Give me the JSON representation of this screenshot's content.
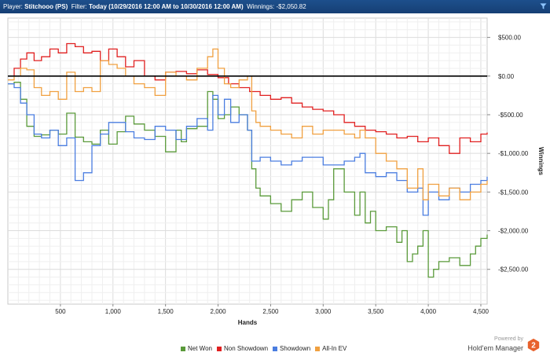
{
  "header": {
    "player_label": "Player:",
    "player_value": "Stitchooo (PS)",
    "filter_label": "Filter:",
    "filter_value": "Today (10/29/2016 12:00 AM to 10/30/2016 12:00 AM)",
    "winnings_label": "Winnings:",
    "winnings_value": "-$2,050.82"
  },
  "branding": {
    "powered_by": "Powered by",
    "product": "Hold'em Manager",
    "logo_glyph": "2",
    "logo_color": "#e8612c"
  },
  "chart_data": {
    "type": "line",
    "title": "",
    "xlabel": "Hands",
    "ylabel": "Winnings",
    "xlim": [
      0,
      4560
    ],
    "ylim": [
      -2950,
      750
    ],
    "x_ticks": [
      500,
      1000,
      1500,
      2000,
      2500,
      3000,
      3500,
      4000,
      4500
    ],
    "x_tick_labels": [
      "500",
      "1,000",
      "1,500",
      "2,000",
      "2,500",
      "3,000",
      "3,500",
      "4,000",
      "4,500"
    ],
    "y_ticks": [
      500,
      0,
      -500,
      -1000,
      -1500,
      -2000,
      -2500
    ],
    "y_tick_labels": [
      "$500.00",
      "$0.00",
      "-$500.00",
      "-$1,000.00",
      "-$1,500.00",
      "-$2,000.00",
      "-$2,500.00"
    ],
    "grid": true,
    "zero_line": true,
    "legend_position": "bottom",
    "series": [
      {
        "name": "Net Won",
        "color": "#5a9a3a",
        "x": [
          0,
          60,
          120,
          180,
          250,
          320,
          400,
          480,
          560,
          640,
          720,
          800,
          880,
          960,
          1040,
          1120,
          1200,
          1300,
          1400,
          1500,
          1600,
          1650,
          1700,
          1800,
          1900,
          1950,
          2000,
          2060,
          2120,
          2200,
          2280,
          2320,
          2360,
          2400,
          2500,
          2600,
          2700,
          2800,
          2900,
          3000,
          3050,
          3100,
          3200,
          3300,
          3350,
          3400,
          3450,
          3500,
          3600,
          3700,
          3750,
          3800,
          3850,
          3900,
          3950,
          4000,
          4050,
          4100,
          4200,
          4300,
          4400,
          4450,
          4500,
          4560
        ],
        "y": [
          -100,
          -80,
          -300,
          -650,
          -780,
          -760,
          -700,
          -750,
          -480,
          -790,
          -850,
          -880,
          -700,
          -880,
          -720,
          -520,
          -620,
          -700,
          -780,
          -980,
          -700,
          -850,
          -680,
          -650,
          -200,
          -300,
          -550,
          -500,
          -400,
          -500,
          -700,
          -1200,
          -1450,
          -1550,
          -1650,
          -1750,
          -1600,
          -1500,
          -1700,
          -1850,
          -1600,
          -1200,
          -1500,
          -1800,
          -1500,
          -1900,
          -1750,
          -2000,
          -1950,
          -2150,
          -2000,
          -2400,
          -2300,
          -2200,
          -2000,
          -2600,
          -2500,
          -2400,
          -2350,
          -2450,
          -2300,
          -2200,
          -2100,
          -2050
        ]
      },
      {
        "name": "Non Showdown",
        "color": "#e02020",
        "x": [
          0,
          60,
          120,
          180,
          250,
          320,
          400,
          480,
          560,
          640,
          720,
          800,
          880,
          960,
          1040,
          1120,
          1200,
          1300,
          1400,
          1500,
          1600,
          1700,
          1800,
          1900,
          2000,
          2100,
          2200,
          2300,
          2400,
          2500,
          2600,
          2700,
          2800,
          2900,
          3000,
          3100,
          3200,
          3300,
          3400,
          3500,
          3600,
          3700,
          3800,
          3900,
          4000,
          4100,
          4200,
          4300,
          4400,
          4500,
          4560
        ],
        "y": [
          0,
          100,
          220,
          300,
          200,
          250,
          350,
          300,
          420,
          380,
          300,
          320,
          200,
          350,
          250,
          120,
          200,
          0,
          -50,
          50,
          60,
          30,
          80,
          20,
          -20,
          -100,
          -150,
          -200,
          -250,
          -300,
          -280,
          -350,
          -400,
          -430,
          -450,
          -500,
          -600,
          -650,
          -700,
          -720,
          -750,
          -800,
          -780,
          -850,
          -800,
          -900,
          -1000,
          -800,
          -850,
          -750,
          -730
        ]
      },
      {
        "name": "Showdown",
        "color": "#4a7de0",
        "x": [
          0,
          60,
          120,
          180,
          250,
          320,
          400,
          480,
          560,
          640,
          720,
          800,
          880,
          960,
          1040,
          1120,
          1200,
          1300,
          1400,
          1500,
          1600,
          1700,
          1800,
          1900,
          1950,
          2000,
          2060,
          2120,
          2200,
          2280,
          2320,
          2360,
          2400,
          2500,
          2600,
          2700,
          2800,
          2900,
          3000,
          3100,
          3200,
          3300,
          3350,
          3400,
          3500,
          3600,
          3700,
          3800,
          3900,
          3950,
          4000,
          4100,
          4200,
          4300,
          4400,
          4500,
          4560
        ],
        "y": [
          -100,
          -150,
          -350,
          -500,
          -750,
          -800,
          -700,
          -900,
          -800,
          -1350,
          -1250,
          -900,
          -750,
          -600,
          -600,
          -720,
          -800,
          -820,
          -650,
          -700,
          -820,
          -650,
          -550,
          -700,
          -250,
          -500,
          -300,
          -600,
          -500,
          -700,
          -1100,
          -1100,
          -1050,
          -1100,
          -1150,
          -1100,
          -1050,
          -1050,
          -1150,
          -1150,
          -1100,
          -1050,
          -1000,
          -1250,
          -1300,
          -1250,
          -1350,
          -1500,
          -1450,
          -1800,
          -1500,
          -1600,
          -1450,
          -1500,
          -1400,
          -1350,
          -1300
        ]
      },
      {
        "name": "All-In EV",
        "color": "#f0a040",
        "x": [
          0,
          60,
          120,
          180,
          250,
          320,
          400,
          480,
          560,
          640,
          720,
          800,
          880,
          960,
          1040,
          1120,
          1200,
          1300,
          1400,
          1500,
          1600,
          1700,
          1800,
          1900,
          1950,
          2000,
          2060,
          2120,
          2200,
          2280,
          2320,
          2360,
          2400,
          2500,
          2600,
          2700,
          2800,
          2900,
          3000,
          3100,
          3200,
          3300,
          3350,
          3400,
          3500,
          3600,
          3700,
          3800,
          3900,
          3950,
          4000,
          4100,
          4200,
          4300,
          4400,
          4500,
          4560
        ],
        "y": [
          -50,
          0,
          100,
          80,
          -150,
          -250,
          -200,
          -300,
          50,
          -200,
          -150,
          -200,
          200,
          150,
          100,
          0,
          -100,
          -150,
          -250,
          50,
          0,
          -50,
          100,
          250,
          350,
          100,
          -100,
          -150,
          -50,
          0,
          -450,
          -600,
          -650,
          -700,
          -750,
          -800,
          -650,
          -750,
          -700,
          -700,
          -750,
          -800,
          -700,
          -800,
          -1000,
          -1100,
          -1200,
          -1450,
          -1200,
          -1600,
          -1400,
          -1550,
          -1450,
          -1600,
          -1500,
          -1400,
          -1350
        ]
      }
    ]
  }
}
